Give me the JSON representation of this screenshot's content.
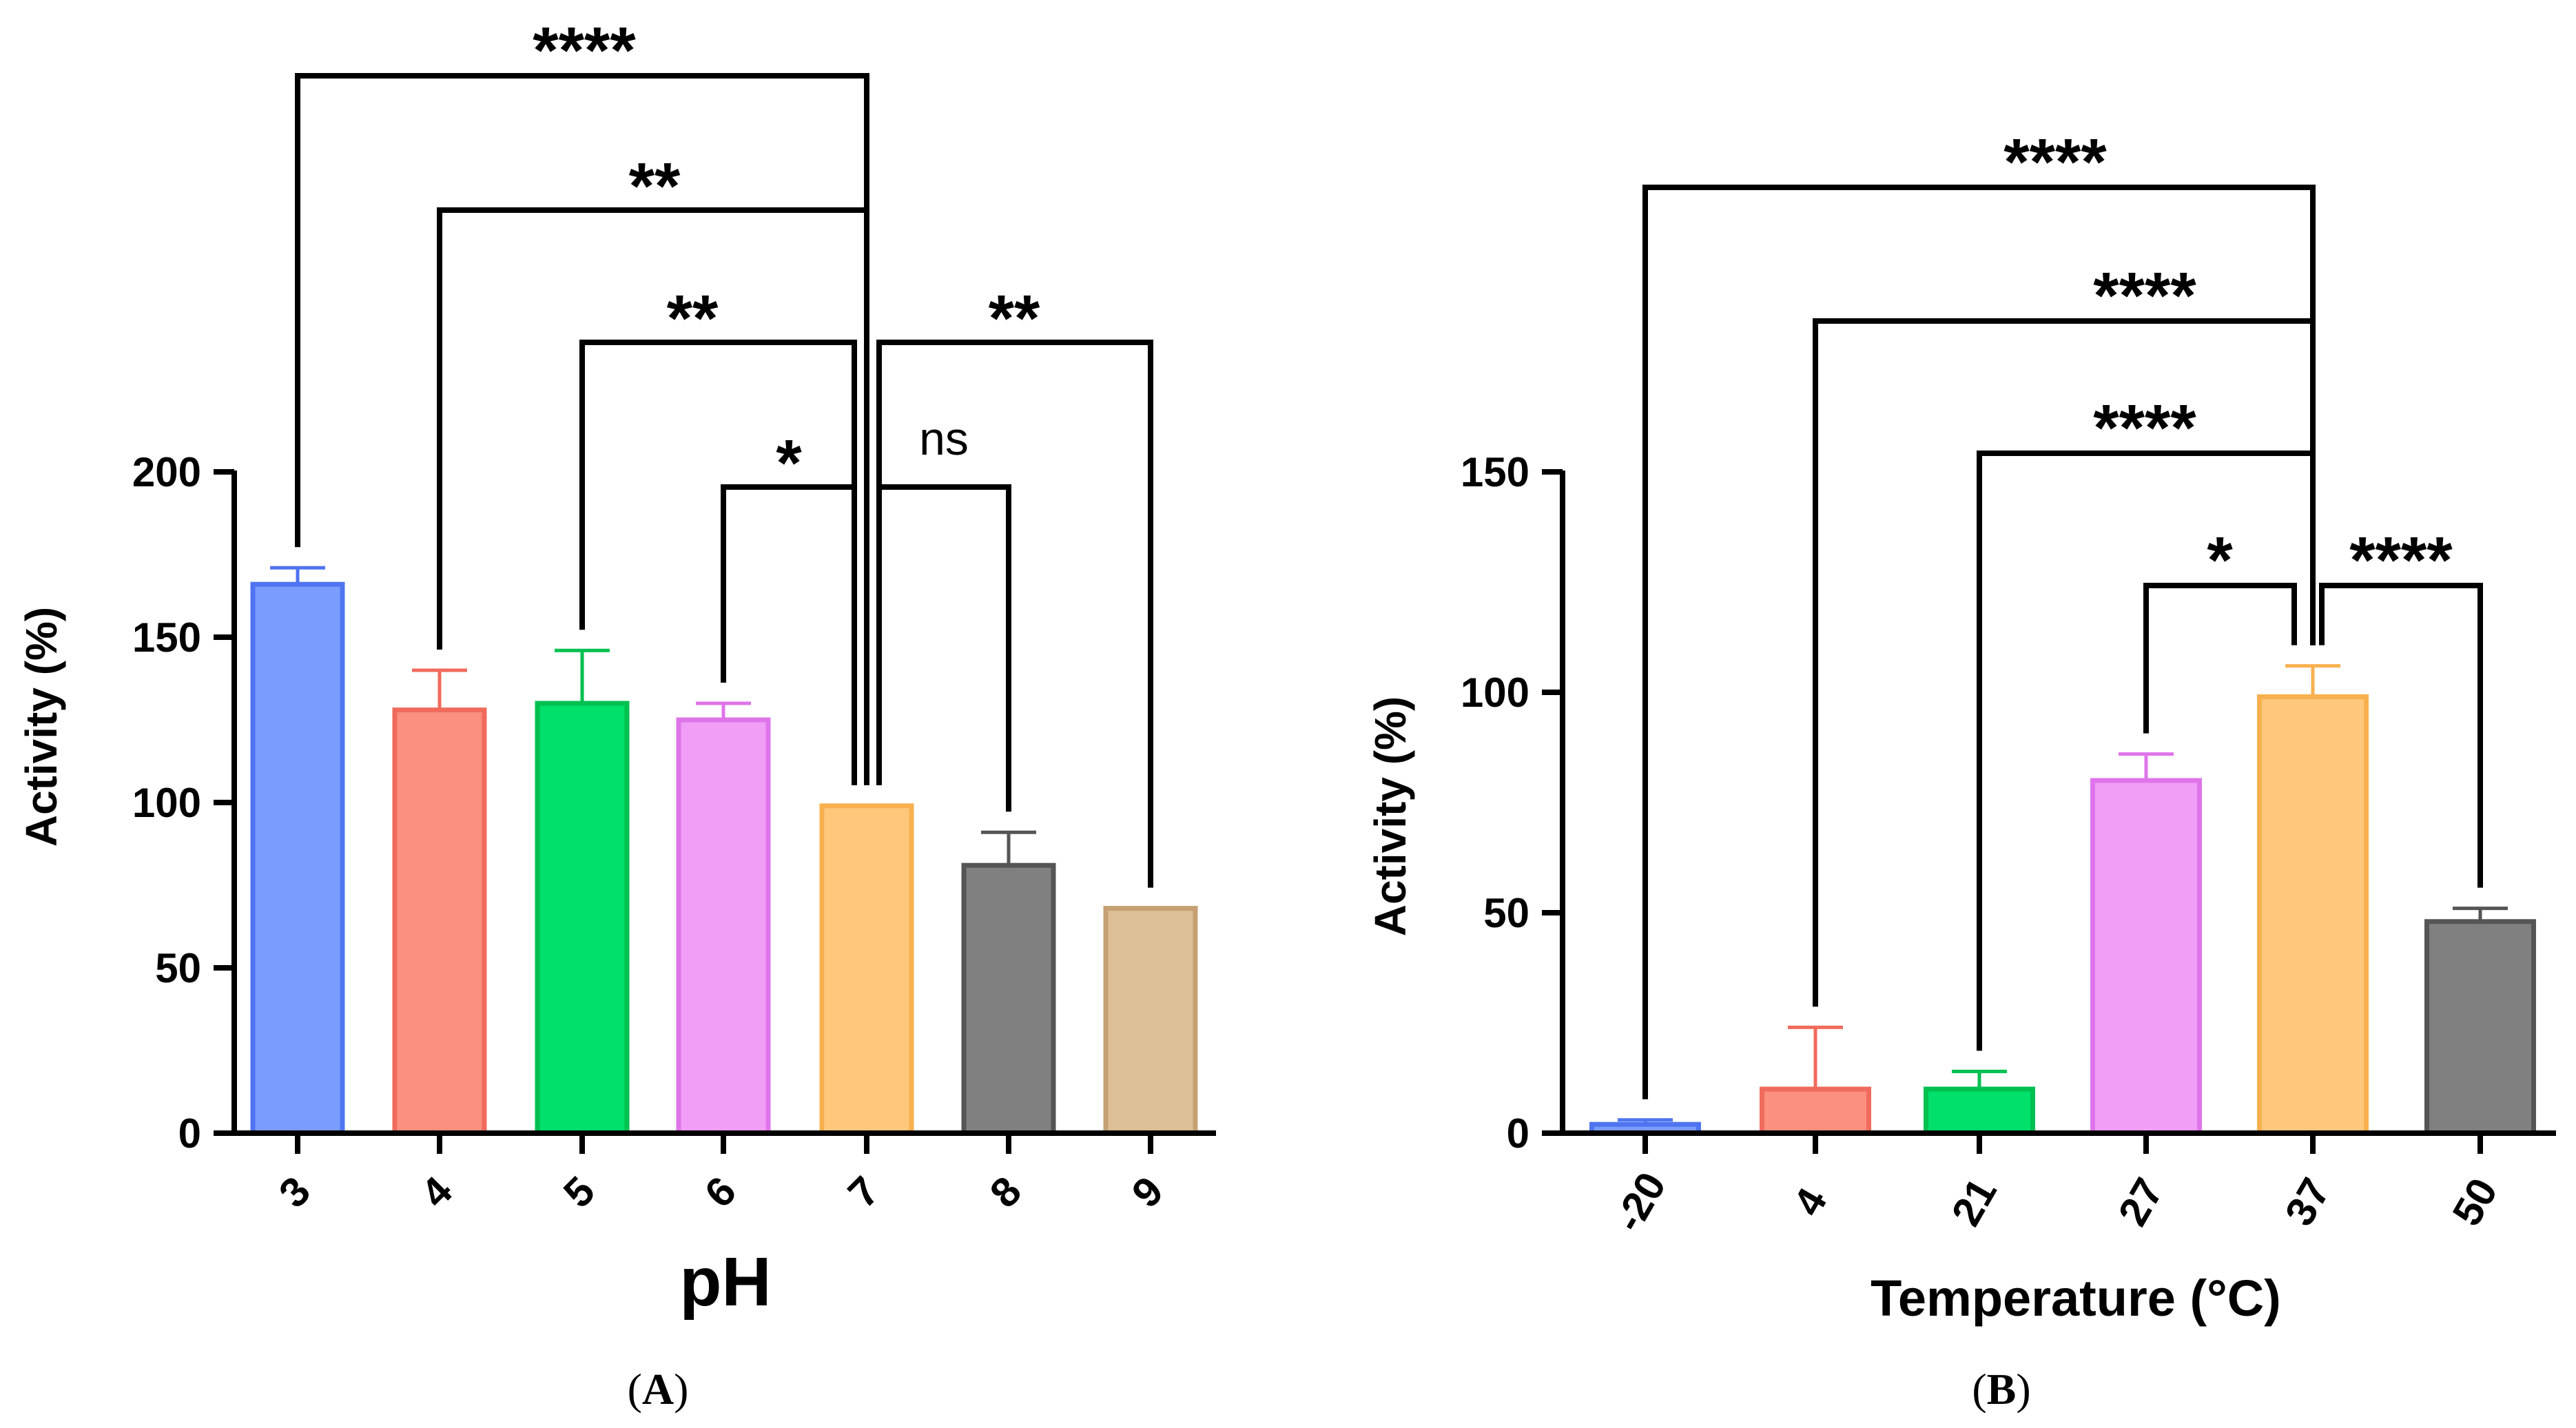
{
  "chart_data": [
    {
      "type": "bar",
      "panel_label": "A",
      "xlabel": "pH",
      "ylabel": "Activity (%)",
      "ylim": [
        0,
        200
      ],
      "yticks": [
        0,
        50,
        100,
        150,
        200
      ],
      "categories": [
        "3",
        "4",
        "5",
        "6",
        "7",
        "8",
        "9"
      ],
      "values": [
        166,
        128,
        130,
        125,
        99,
        81,
        68
      ],
      "errors": [
        5,
        12,
        16,
        5,
        0,
        10,
        0
      ],
      "colors": {
        "fill": [
          "#7b9cff",
          "#fb8f80",
          "#00e06a",
          "#f09ef6",
          "#fec77c",
          "#808080",
          "#dcbf97"
        ],
        "stroke": [
          "#4f74f0",
          "#f06b5c",
          "#00c050",
          "#df74ea",
          "#f8b04e",
          "#555555",
          "#c5a073"
        ]
      },
      "comparisons": [
        {
          "from": "3",
          "to": "7",
          "label": "****"
        },
        {
          "from": "4",
          "to": "7",
          "label": "**"
        },
        {
          "from": "5",
          "to": "7",
          "label": "**"
        },
        {
          "from": "7",
          "to": "9",
          "label": "**"
        },
        {
          "from": "6",
          "to": "7",
          "label": "*"
        },
        {
          "from": "7",
          "to": "8",
          "label": "ns"
        }
      ]
    },
    {
      "type": "bar",
      "panel_label": "B",
      "xlabel": "Temperature (°C)",
      "ylabel": "Activity (%)",
      "ylim": [
        0,
        150
      ],
      "yticks": [
        0,
        50,
        100,
        150
      ],
      "categories": [
        "-20",
        "4",
        "21",
        "27",
        "37",
        "50"
      ],
      "values": [
        2,
        10,
        10,
        80,
        99,
        48
      ],
      "errors": [
        1,
        14,
        4,
        6,
        7,
        3
      ],
      "colors": {
        "fill": [
          "#7b9cff",
          "#fb8f80",
          "#00e06a",
          "#f09ef6",
          "#fec77c",
          "#808080"
        ],
        "stroke": [
          "#4f74f0",
          "#f06b5c",
          "#00c050",
          "#df74ea",
          "#f8b04e",
          "#555555"
        ]
      },
      "comparisons": [
        {
          "from": "-20",
          "to": "37",
          "label": "****"
        },
        {
          "from": "4",
          "to": "37",
          "label": "****"
        },
        {
          "from": "21",
          "to": "37",
          "label": "****"
        },
        {
          "from": "27",
          "to": "37",
          "label": "*"
        },
        {
          "from": "37",
          "to": "50",
          "label": "****"
        }
      ]
    }
  ]
}
